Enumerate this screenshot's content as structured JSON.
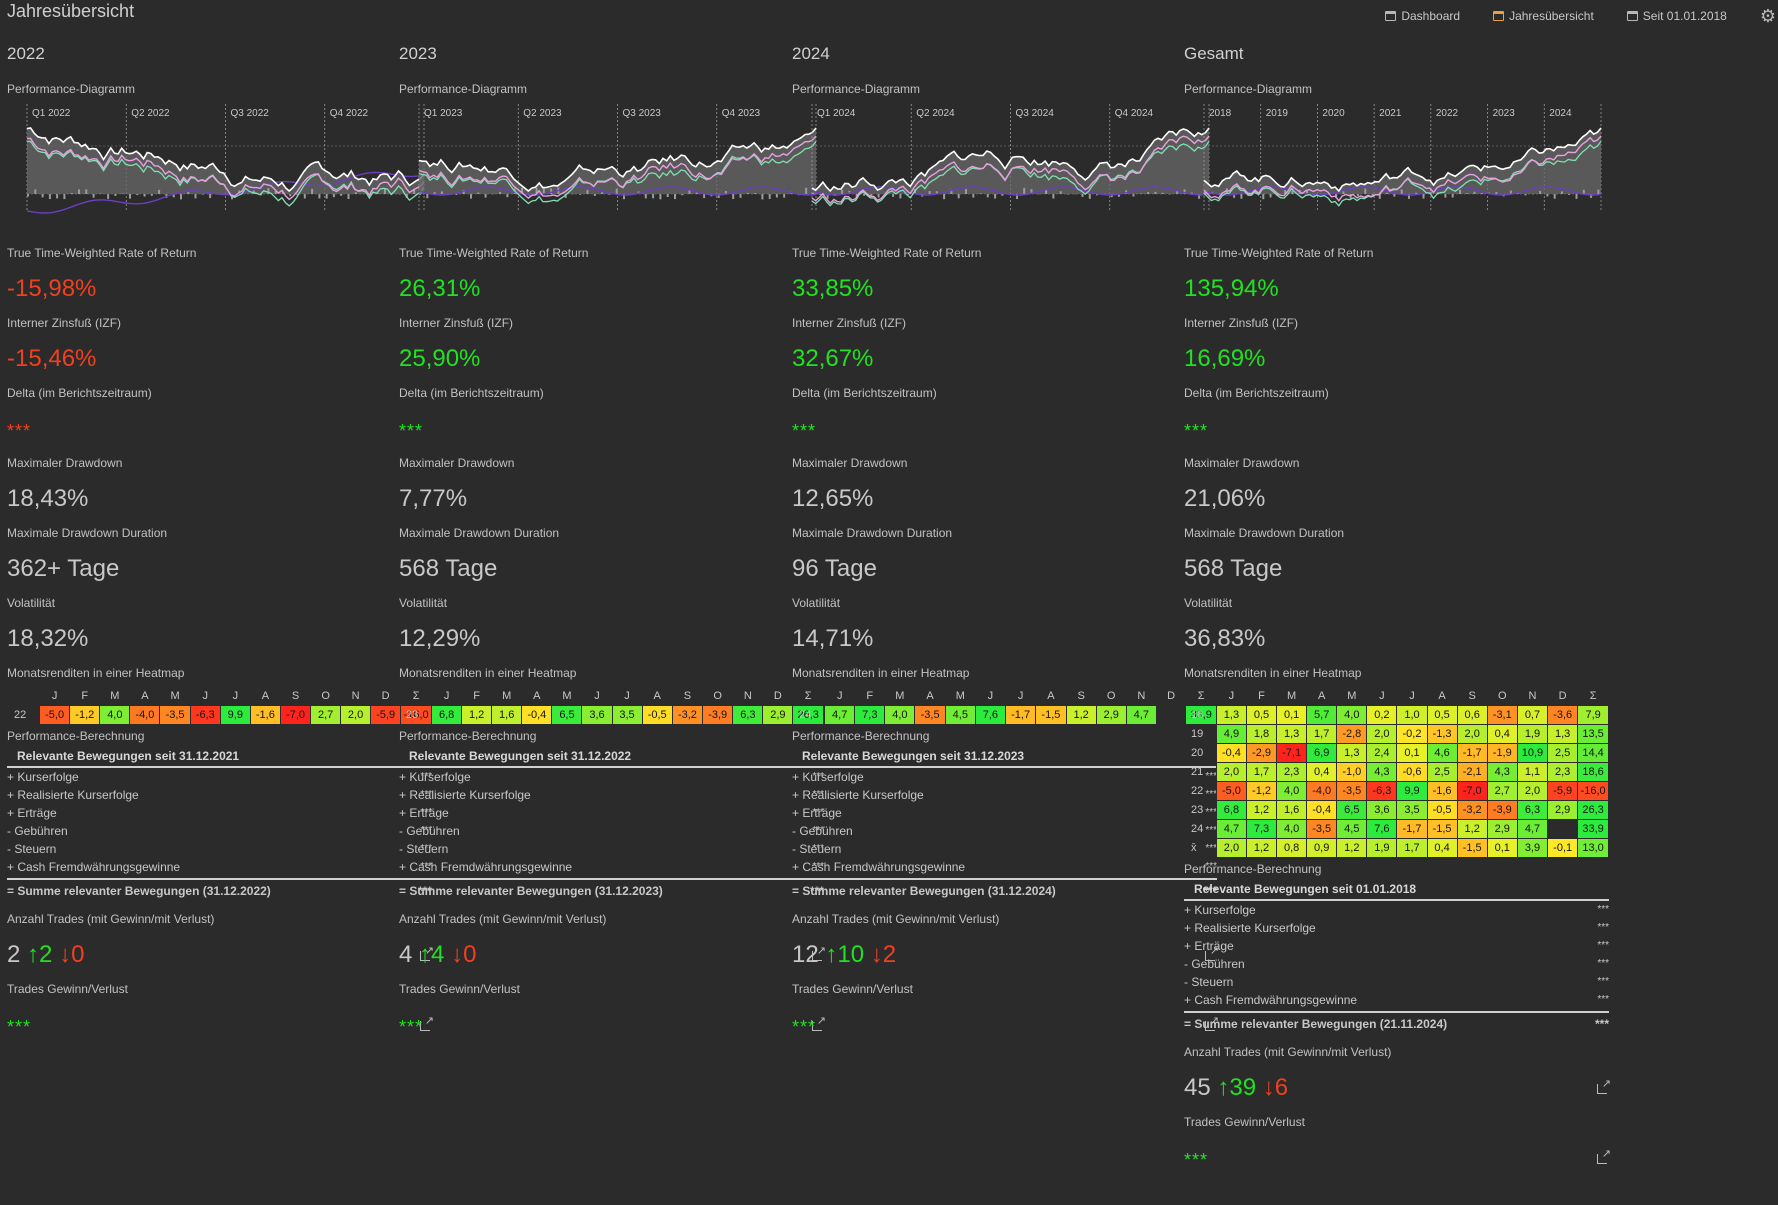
{
  "title": "Jahresübersicht",
  "nav": [
    {
      "label": "Dashboard",
      "icon": "calendar-icon",
      "active": false
    },
    {
      "label": "Jahresübersicht",
      "icon": "calendar-icon",
      "active": true
    },
    {
      "label": "Seit 01.01.2018",
      "icon": "calendar-icon",
      "active": false
    }
  ],
  "labels": {
    "performance_chart": "Performance-Diagramm",
    "ttwror": "True Time-Weighted Rate of Return",
    "izf": "Interner Zinsfuß (IZF)",
    "delta": "Delta (im Berichtszeitraum)",
    "mdd": "Maximaler Drawdown",
    "mdd_duration": "Maximale Drawdown Duration",
    "volatility": "Volatilität",
    "heatmap": "Monatsrenditen in einer Heatmap",
    "calc": "Performance-Berechnung",
    "trades": "Anzahl Trades (mit Gewinn/mit Verlust)",
    "trades_pl": "Trades Gewinn/Verlust",
    "calc_rows": [
      "+ Kurserfolge",
      "+ Realisierte Kurserfolge",
      "+ Erträge",
      "-  Gebühren",
      "-  Steuern",
      "+ Cash Fremdwährungsgewinne"
    ],
    "hidden": "***",
    "months": [
      "J",
      "F",
      "M",
      "A",
      "M",
      "J",
      "J",
      "A",
      "S",
      "O",
      "N",
      "D",
      "Σ"
    ]
  },
  "columns": [
    {
      "title": "2022",
      "chart": {
        "quarters": [
          "Q1 2022",
          "Q2 2022",
          "Q3 2022",
          "Q4 2022"
        ]
      },
      "ttwror": "-15,98%",
      "ttwror_sign": "neg",
      "izf": "-15,46%",
      "izf_sign": "neg",
      "delta": "***",
      "delta_sign": "neg",
      "mdd": "18,43%",
      "mdd_duration": "362+ Tage",
      "volatility": "18,32%",
      "heatmap": [
        {
          "row": "22",
          "values": [
            "-5,0",
            "-1,2",
            "4,0",
            "-4,0",
            "-3,5",
            "-6,3",
            "9,9",
            "-1,6",
            "-7,0",
            "2,7",
            "2,0",
            "-5,9",
            "-16,0"
          ]
        }
      ],
      "calc_head": "Relevante Bewegungen seit 31.12.2021",
      "calc_sum": "= Summe relevanter Bewegungen (31.12.2022)",
      "trades_total": "2",
      "trades_win": "↑2",
      "trades_loss": "↓0",
      "trades_pl": "***"
    },
    {
      "title": "2023",
      "chart": {
        "quarters": [
          "Q1 2023",
          "Q2 2023",
          "Q3 2023",
          "Q4 2023"
        ]
      },
      "ttwror": "26,31%",
      "ttwror_sign": "pos",
      "izf": "25,90%",
      "izf_sign": "pos",
      "delta": "***",
      "delta_sign": "pos",
      "mdd": "7,77%",
      "mdd_duration": "568 Tage",
      "volatility": "12,29%",
      "heatmap": [
        {
          "row": "23",
          "values": [
            "6,8",
            "1,2",
            "1,6",
            "-0,4",
            "6,5",
            "3,6",
            "3,5",
            "-0,5",
            "-3,2",
            "-3,9",
            "6,3",
            "2,9",
            "26,3"
          ]
        }
      ],
      "calc_head": "Relevante Bewegungen seit 31.12.2022",
      "calc_sum": "= Summe relevanter Bewegungen (31.12.2023)",
      "trades_total": "4",
      "trades_win": "↑4",
      "trades_loss": "↓0",
      "trades_pl": "***"
    },
    {
      "title": "2024",
      "chart": {
        "quarters": [
          "Q1 2024",
          "Q2 2024",
          "Q3 2024",
          "Q4 2024"
        ]
      },
      "ttwror": "33,85%",
      "ttwror_sign": "pos",
      "izf": "32,67%",
      "izf_sign": "pos",
      "delta": "***",
      "delta_sign": "pos",
      "mdd": "12,65%",
      "mdd_duration": "96 Tage",
      "volatility": "14,71%",
      "heatmap": [
        {
          "row": "24",
          "values": [
            "4,7",
            "7,3",
            "4,0",
            "-3,5",
            "4,5",
            "7,6",
            "-1,7",
            "-1,5",
            "1,2",
            "2,9",
            "4,7",
            "",
            "33,9"
          ]
        }
      ],
      "calc_head": "Relevante Bewegungen seit 31.12.2023",
      "calc_sum": "= Summe relevanter Bewegungen (31.12.2024)",
      "trades_total": "12",
      "trades_win": "↑10",
      "trades_loss": "↓2",
      "trades_pl": "***"
    },
    {
      "title": "Gesamt",
      "chart": {
        "quarters": [
          "2018",
          "2019",
          "2020",
          "2021",
          "2022",
          "2023",
          "2024"
        ]
      },
      "ttwror": "135,94%",
      "ttwror_sign": "pos",
      "izf": "16,69%",
      "izf_sign": "pos",
      "delta": "***",
      "delta_sign": "pos",
      "mdd": "21,06%",
      "mdd_duration": "568 Tage",
      "volatility": "36,83%",
      "heatmap": [
        {
          "row": "18",
          "values": [
            "1,3",
            "0,5",
            "0,1",
            "5,7",
            "4,0",
            "0,2",
            "1,0",
            "0,5",
            "0,6",
            "-3,1",
            "0,7",
            "-3,6",
            "7,9"
          ]
        },
        {
          "row": "19",
          "values": [
            "4,9",
            "1,8",
            "1,3",
            "1,7",
            "-2,8",
            "2,0",
            "-0,2",
            "-1,3",
            "2,0",
            "0,4",
            "1,9",
            "1,3",
            "13,5"
          ]
        },
        {
          "row": "20",
          "values": [
            "-0,4",
            "-2,9",
            "-7,1",
            "6,9",
            "1,3",
            "2,4",
            "0,1",
            "4,6",
            "-1,7",
            "-1,9",
            "10,9",
            "2,5",
            "14,4"
          ]
        },
        {
          "row": "21",
          "values": [
            "2,0",
            "1,7",
            "2,3",
            "0,4",
            "-1,0",
            "4,3",
            "-0,6",
            "2,5",
            "-2,1",
            "4,3",
            "1,1",
            "2,3",
            "18,6"
          ]
        },
        {
          "row": "22",
          "values": [
            "-5,0",
            "-1,2",
            "4,0",
            "-4,0",
            "-3,5",
            "-6,3",
            "9,9",
            "-1,6",
            "-7,0",
            "2,7",
            "2,0",
            "-5,9",
            "-16,0"
          ]
        },
        {
          "row": "23",
          "values": [
            "6,8",
            "1,2",
            "1,6",
            "-0,4",
            "6,5",
            "3,6",
            "3,5",
            "-0,5",
            "-3,2",
            "-3,9",
            "6,3",
            "2,9",
            "26,3"
          ]
        },
        {
          "row": "24",
          "values": [
            "4,7",
            "7,3",
            "4,0",
            "-3,5",
            "4,5",
            "7,6",
            "-1,7",
            "-1,5",
            "1,2",
            "2,9",
            "4,7",
            "",
            "33,9"
          ]
        },
        {
          "row": "x̄",
          "values": [
            "2,0",
            "1,2",
            "0,8",
            "0,9",
            "1,2",
            "1,9",
            "1,7",
            "0,4",
            "-1,5",
            "0,1",
            "3,9",
            "-0,1",
            "13,0"
          ]
        }
      ],
      "calc_head": "Relevante Bewegungen seit 01.01.2018",
      "calc_sum": "= Summe relevanter Bewegungen (21.11.2024)",
      "trades_total": "45",
      "trades_win": "↑39",
      "trades_loss": "↓6",
      "trades_pl": "***"
    }
  ]
}
